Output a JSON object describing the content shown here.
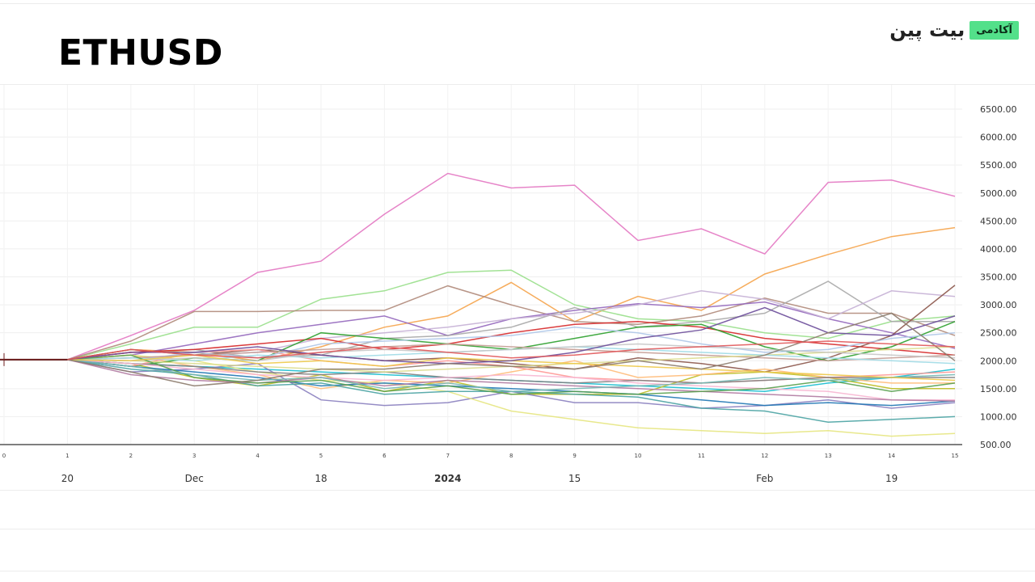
{
  "header": {
    "title": "ETHUSD",
    "brand": {
      "name": "بیت پین",
      "badge": "آکادمی",
      "badge_color": "#53e08a"
    }
  },
  "chart_data": {
    "type": "line",
    "title": "ETHUSD",
    "ylim": [
      500,
      6500
    ],
    "y_ticks": [
      "6500.00",
      "6000.00",
      "5500.00",
      "5000.00",
      "4500.00",
      "4000.00",
      "3500.00",
      "3000.00",
      "2500.00",
      "2000.00",
      "1500.00",
      "1000.00",
      "500.00"
    ],
    "x_steps": [
      "0",
      "1",
      "2",
      "3",
      "4",
      "5",
      "6",
      "7",
      "8",
      "9",
      "10",
      "11",
      "12",
      "13",
      "14",
      "15"
    ],
    "x_date_labels": [
      {
        "step": 1,
        "label": "20"
      },
      {
        "step": 3,
        "label": "Dec"
      },
      {
        "step": 5,
        "label": "18"
      },
      {
        "step": 7,
        "label": "2024",
        "bold": true
      },
      {
        "step": 9,
        "label": "15"
      },
      {
        "step": 12,
        "label": "Feb"
      },
      {
        "step": 14,
        "label": "19"
      }
    ],
    "start_value": 2020,
    "grid": true,
    "series": [
      {
        "color": "#e377c2",
        "values": [
          2020,
          2020,
          2450,
          2900,
          3580,
          3780,
          4620,
          5350,
          5090,
          5140,
          4150,
          4360,
          3910,
          5190,
          5230,
          4940
        ]
      },
      {
        "color": "#f5a34a",
        "values": [
          2020,
          2020,
          2200,
          2150,
          2000,
          2250,
          2600,
          2800,
          3400,
          2700,
          3150,
          2900,
          3550,
          3900,
          4220,
          4380
        ]
      },
      {
        "color": "#98df8a",
        "values": [
          2020,
          2020,
          2300,
          2600,
          2600,
          3100,
          3250,
          3580,
          3620,
          3000,
          2750,
          2700,
          2500,
          2400,
          2700,
          2800
        ]
      },
      {
        "color": "#b08a7a",
        "values": [
          2020,
          2020,
          2350,
          2880,
          2880,
          2900,
          2900,
          3340,
          3000,
          2700,
          2650,
          2800,
          3120,
          2850,
          2850,
          2450
        ]
      },
      {
        "color": "#9467bd",
        "values": [
          2020,
          2020,
          2100,
          2300,
          2500,
          2650,
          2800,
          2450,
          2750,
          2900,
          3020,
          2950,
          3050,
          2750,
          2500,
          2220
        ]
      },
      {
        "color": "#a9a9a9",
        "values": [
          2020,
          2020,
          2150,
          2200,
          2050,
          2100,
          2400,
          2450,
          2600,
          2950,
          2600,
          2700,
          2850,
          3420,
          2700,
          2700
        ]
      },
      {
        "color": "#c5b0d5",
        "values": [
          2020,
          2020,
          2050,
          2100,
          2150,
          2400,
          2500,
          2600,
          2750,
          2850,
          3000,
          3250,
          3100,
          2750,
          3250,
          3150
        ]
      },
      {
        "color": "#d62728",
        "values": [
          2020,
          2020,
          2150,
          2200,
          2300,
          2400,
          2200,
          2300,
          2500,
          2650,
          2700,
          2600,
          2400,
          2300,
          2200,
          2100
        ]
      },
      {
        "color": "#8c564b",
        "values": [
          2020,
          2020,
          2200,
          2100,
          2200,
          2100,
          2000,
          2050,
          1950,
          1850,
          2050,
          1950,
          1800,
          2050,
          2450,
          3350
        ]
      },
      {
        "color": "#17becf",
        "values": [
          2020,
          2020,
          1950,
          1900,
          1850,
          1800,
          1750,
          1700,
          1650,
          1600,
          1550,
          1500,
          1450,
          1600,
          1700,
          1850
        ]
      },
      {
        "color": "#bcbd22",
        "values": [
          2020,
          2020,
          1950,
          1700,
          1550,
          1750,
          1450,
          1650,
          1400,
          1400,
          1400,
          1750,
          1800,
          1700,
          1500,
          1500
        ]
      },
      {
        "color": "#ffbb78",
        "values": [
          2020,
          2020,
          2100,
          1900,
          1750,
          1500,
          1650,
          1600,
          1800,
          2000,
          1700,
          1750,
          1850,
          1700,
          1600,
          1600
        ]
      },
      {
        "color": "#8a7fbf",
        "values": [
          2020,
          2020,
          1800,
          1850,
          1950,
          1300,
          1200,
          1250,
          1450,
          1250,
          1250,
          1150,
          1200,
          1300,
          1150,
          1250
        ]
      },
      {
        "color": "#2ca02c",
        "values": [
          2020,
          2020,
          1900,
          2050,
          2000,
          2500,
          2400,
          2300,
          2200,
          2400,
          2600,
          2650,
          2250,
          2000,
          2250,
          2700
        ]
      },
      {
        "color": "#ff9896",
        "values": [
          2020,
          2020,
          1900,
          2150,
          2200,
          2000,
          1900,
          2000,
          1900,
          1700,
          1650,
          1600,
          1650,
          1700,
          1750,
          1800
        ]
      },
      {
        "color": "#e6e680",
        "values": [
          2020,
          2020,
          2100,
          2000,
          1800,
          1650,
          1600,
          1450,
          1100,
          950,
          800,
          750,
          700,
          750,
          650,
          700
        ]
      },
      {
        "color": "#1f77b4",
        "values": [
          2020,
          2020,
          1900,
          1800,
          1700,
          1550,
          1600,
          1550,
          1500,
          1450,
          1400,
          1300,
          1200,
          1250,
          1200,
          1280
        ]
      },
      {
        "color": "#4aa3a3",
        "values": [
          2020,
          2020,
          1850,
          1750,
          1550,
          1600,
          1400,
          1450,
          1450,
          1400,
          1350,
          1150,
          1100,
          900,
          950,
          1000
        ]
      },
      {
        "color": "#7f7f7f",
        "values": [
          2020,
          2020,
          1950,
          1900,
          1800,
          1750,
          1800,
          1700,
          1650,
          1600,
          1650,
          1600,
          1650,
          1700,
          1700,
          1700
        ]
      },
      {
        "color": "#aec7e8",
        "values": [
          2020,
          2020,
          2000,
          2150,
          2050,
          2300,
          2350,
          2400,
          2450,
          2600,
          2500,
          2300,
          2150,
          2200,
          2400,
          2500
        ]
      },
      {
        "color": "#c49c94",
        "values": [
          2020,
          2020,
          2050,
          2100,
          2150,
          2200,
          2250,
          2300,
          2250,
          2200,
          2150,
          2100,
          2050,
          2000,
          2050,
          2100
        ]
      },
      {
        "color": "#dbdb8d",
        "values": [
          2020,
          2020,
          2000,
          1950,
          1900,
          1850,
          1800,
          1850,
          1900,
          1950,
          2000,
          2050,
          2100,
          2150,
          2200,
          2250
        ]
      },
      {
        "color": "#f7b6d2",
        "values": [
          2020,
          2020,
          1950,
          1850,
          1750,
          1700,
          1650,
          1700,
          1750,
          1700,
          1600,
          1550,
          1500,
          1450,
          1300,
          1300
        ]
      },
      {
        "color": "#9edae5",
        "values": [
          2020,
          2020,
          2050,
          2000,
          2100,
          2050,
          2100,
          2150,
          2200,
          2250,
          2200,
          2150,
          2100,
          2050,
          2000,
          1950
        ]
      },
      {
        "color": "#c7c7c7",
        "values": [
          2020,
          2020,
          2000,
          2050,
          2000,
          2150,
          2200,
          2150,
          2200,
          2250,
          2300,
          2250,
          2200,
          2150,
          2100,
          2050
        ]
      },
      {
        "color": "#b07aa1",
        "values": [
          2020,
          2020,
          1750,
          1650,
          1600,
          1700,
          1550,
          1650,
          1600,
          1550,
          1500,
          1450,
          1400,
          1350,
          1300,
          1280
        ]
      },
      {
        "color": "#59a14f",
        "values": [
          2020,
          2020,
          2100,
          1700,
          1600,
          1650,
          1450,
          1550,
          1400,
          1450,
          1400,
          1450,
          1500,
          1650,
          1450,
          1600
        ]
      },
      {
        "color": "#76b7b2",
        "values": [
          2020,
          2020,
          1900,
          1750,
          1650,
          1700,
          1500,
          1600,
          1450,
          1500,
          1550,
          1600,
          1700,
          1650,
          1700,
          1750
        ]
      },
      {
        "color": "#edc948",
        "values": [
          2020,
          2020,
          2000,
          2100,
          1950,
          2000,
          1900,
          2050,
          2000,
          1950,
          1900,
          1850,
          1800,
          1750,
          1700,
          1650
        ]
      },
      {
        "color": "#6b4c9a",
        "values": [
          2020,
          2020,
          2150,
          2150,
          2250,
          2100,
          2000,
          1950,
          2000,
          2150,
          2400,
          2550,
          2950,
          2500,
          2450,
          2800
        ]
      },
      {
        "color": "#8c7b6b",
        "values": [
          2020,
          2020,
          1800,
          1550,
          1650,
          1850,
          1850,
          1950,
          1900,
          1850,
          2000,
          1850,
          2100,
          2500,
          2850,
          2000
        ]
      },
      {
        "color": "#e15759",
        "values": [
          2020,
          2020,
          2200,
          2100,
          2050,
          2150,
          2250,
          2150,
          2050,
          2100,
          2200,
          2250,
          2300,
          2350,
          2300,
          2250
        ]
      }
    ]
  }
}
